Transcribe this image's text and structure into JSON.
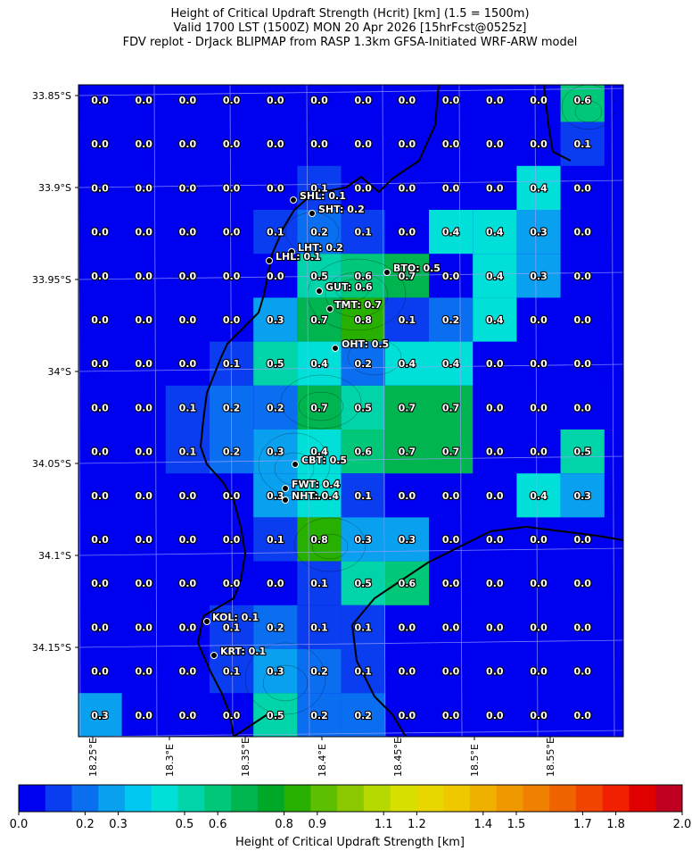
{
  "title": {
    "line1": "Height of Critical Updraft Strength (Hcrit) [km] (1.5 = 1500m)",
    "line2": "Valid 1700 LST (1500Z) MON 20 Apr 2026 [15hrFcst@0525z]",
    "line3": "FDV replot - DrJack BLIPMAP from RASP 1.3km GFSA-Initiated WRF-ARW model"
  },
  "lat_ticks": [
    "33.85°S",
    "33.9°S",
    "33.95°S",
    "34°S",
    "34.05°S",
    "34.1°S",
    "34.15°S"
  ],
  "lon_ticks": [
    "18.25°E",
    "18.3°E",
    "18.35°E",
    "18.4°E",
    "18.45°E",
    "18.5°E",
    "18.55°E"
  ],
  "grid_values": [
    [
      "0.0",
      "0.0",
      "0.0",
      "0.0",
      "0.0",
      "0.0",
      "0.0",
      "0.0",
      "0.0",
      "0.0",
      "0.0",
      "0.6"
    ],
    [
      "0.0",
      "0.0",
      "0.0",
      "0.0",
      "0.0",
      "0.0",
      "0.0",
      "0.0",
      "0.0",
      "0.0",
      "0.0",
      "0.1"
    ],
    [
      "0.0",
      "0.0",
      "0.0",
      "0.0",
      "0.0",
      "0.1",
      "0.0",
      "0.0",
      "0.0",
      "0.0",
      "0.4",
      "0.0"
    ],
    [
      "0.0",
      "0.0",
      "0.0",
      "0.0",
      "0.1",
      "0.2",
      "0.1",
      "0.0",
      "0.4",
      "0.4",
      "0.3",
      "0.0"
    ],
    [
      "0.0",
      "0.0",
      "0.0",
      "0.0",
      "0.0",
      "0.5",
      "0.6",
      "0.7",
      "0.0",
      "0.4",
      "0.3",
      "0.0"
    ],
    [
      "0.0",
      "0.0",
      "0.0",
      "0.0",
      "0.3",
      "0.7",
      "0.8",
      "0.1",
      "0.2",
      "0.4",
      "0.0",
      "0.0"
    ],
    [
      "0.0",
      "0.0",
      "0.0",
      "0.1",
      "0.5",
      "0.4",
      "0.2",
      "0.4",
      "0.4",
      "0.0",
      "0.0",
      "0.0"
    ],
    [
      "0.0",
      "0.0",
      "0.1",
      "0.2",
      "0.2",
      "0.7",
      "0.5",
      "0.7",
      "0.7",
      "0.0",
      "0.0",
      "0.0"
    ],
    [
      "0.0",
      "0.0",
      "0.1",
      "0.2",
      "0.3",
      "0.4",
      "0.6",
      "0.7",
      "0.7",
      "0.0",
      "0.0",
      "0.5"
    ],
    [
      "0.0",
      "0.0",
      "0.0",
      "0.0",
      "0.3",
      "0.4",
      "0.1",
      "0.0",
      "0.0",
      "0.0",
      "0.4",
      "0.3"
    ],
    [
      "0.0",
      "0.0",
      "0.0",
      "0.0",
      "0.1",
      "0.8",
      "0.3",
      "0.3",
      "0.0",
      "0.0",
      "0.0",
      "0.0"
    ],
    [
      "0.0",
      "0.0",
      "0.0",
      "0.0",
      "0.0",
      "0.1",
      "0.5",
      "0.6",
      "0.0",
      "0.0",
      "0.0",
      "0.0"
    ],
    [
      "0.0",
      "0.0",
      "0.0",
      "0.1",
      "0.2",
      "0.1",
      "0.1",
      "0.0",
      "0.0",
      "0.0",
      "0.0",
      "0.0"
    ],
    [
      "0.0",
      "0.0",
      "0.0",
      "0.1",
      "0.3",
      "0.2",
      "0.1",
      "0.0",
      "0.0",
      "0.0",
      "0.0",
      "0.0"
    ],
    [
      "0.3",
      "0.0",
      "0.0",
      "0.0",
      "0.5",
      "0.2",
      "0.2",
      "0.0",
      "0.0",
      "0.0",
      "0.0",
      "0.0"
    ]
  ],
  "stations": [
    {
      "label": "SHL: 0.1"
    },
    {
      "label": "SHT: 0.2"
    },
    {
      "label": "LHT: 0.2"
    },
    {
      "label": "LHL: 0.1"
    },
    {
      "label": "BTO: 0.5"
    },
    {
      "label": "GUT: 0.6"
    },
    {
      "label": "TMT: 0.7"
    },
    {
      "label": "OHT: 0.5"
    },
    {
      "label": "CBT: 0.5"
    },
    {
      "label": "FWT: 0.4"
    },
    {
      "label": "NHT: 0.4"
    },
    {
      "label": "KOL: 0.1"
    },
    {
      "label": "KRT: 0.1"
    }
  ],
  "colorbar": {
    "label": "Height of Critical Updraft Strength [km]",
    "ticks": [
      "0.0",
      "0.2",
      "0.3",
      "0.5",
      "0.6",
      "0.8",
      "0.9",
      "1.1",
      "1.2",
      "1.4",
      "1.5",
      "1.7",
      "1.8",
      "2.0"
    ],
    "colors": [
      "#0000f0",
      "#0a3cf0",
      "#0a6ef0",
      "#0aa0f0",
      "#00c8f0",
      "#00e0d8",
      "#00d4a8",
      "#00c878",
      "#00b450",
      "#00a828",
      "#28b000",
      "#5cc000",
      "#8cc800",
      "#b4d800",
      "#d8e000",
      "#e8d800",
      "#f0c800",
      "#f0b000",
      "#f09800",
      "#f08000",
      "#f06400",
      "#f04400",
      "#f02000",
      "#e00000",
      "#c00020"
    ]
  }
}
